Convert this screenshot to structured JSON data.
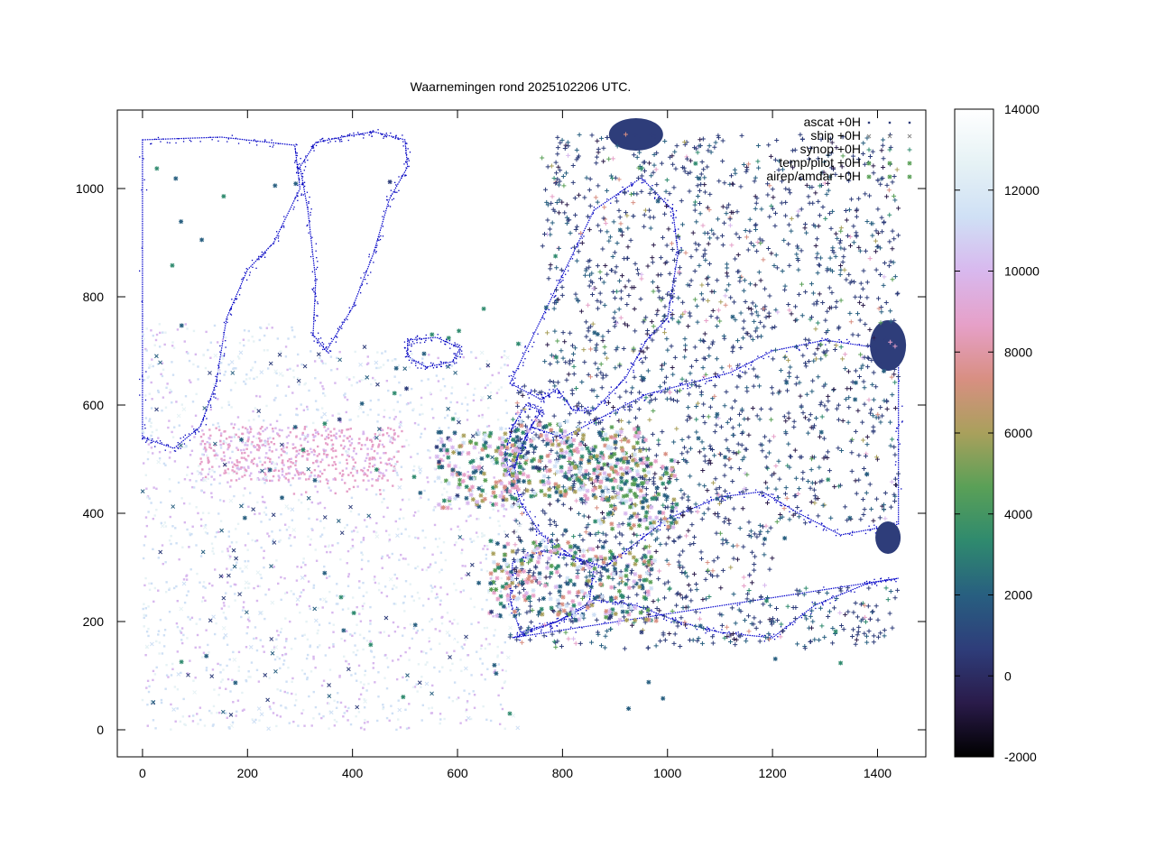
{
  "chart_data": {
    "type": "scatter",
    "title": "Waarnemingen rond 2025102206 UTC.",
    "xlabel": "",
    "ylabel": "",
    "xlim": [
      -48,
      1492
    ],
    "ylim": [
      -50,
      1145
    ],
    "xticks": [
      "0",
      "200",
      "400",
      "600",
      "800",
      "1000",
      "1200",
      "1400"
    ],
    "yticks": [
      "0",
      "200",
      "400",
      "600",
      "800",
      "1000"
    ],
    "grid": false,
    "legend_position": "top-right",
    "legend": [
      {
        "label": "ascat +0H",
        "marker": "dot"
      },
      {
        "label": "ship +0H",
        "marker": "cross-x"
      },
      {
        "label": "synop +0H",
        "marker": "plus"
      },
      {
        "label": "temp/pilot +0H",
        "marker": "star"
      },
      {
        "label": "airep/amdar +0H",
        "marker": "star"
      }
    ],
    "colorbar": {
      "min": -2000,
      "max": 14000,
      "ticks": [
        "14000",
        "12000",
        "10000",
        "8000",
        "6000",
        "4000",
        "2000",
        "0",
        "-2000"
      ],
      "colors": [
        "#000000",
        "#2a1b4a",
        "#2e3d7a",
        "#285f80",
        "#2f8a6e",
        "#5aa057",
        "#a9a05c",
        "#d88f82",
        "#e6a0c8",
        "#d8b8ee",
        "#cfe0f5",
        "#e6f2f5",
        "#ffffff"
      ]
    }
  }
}
